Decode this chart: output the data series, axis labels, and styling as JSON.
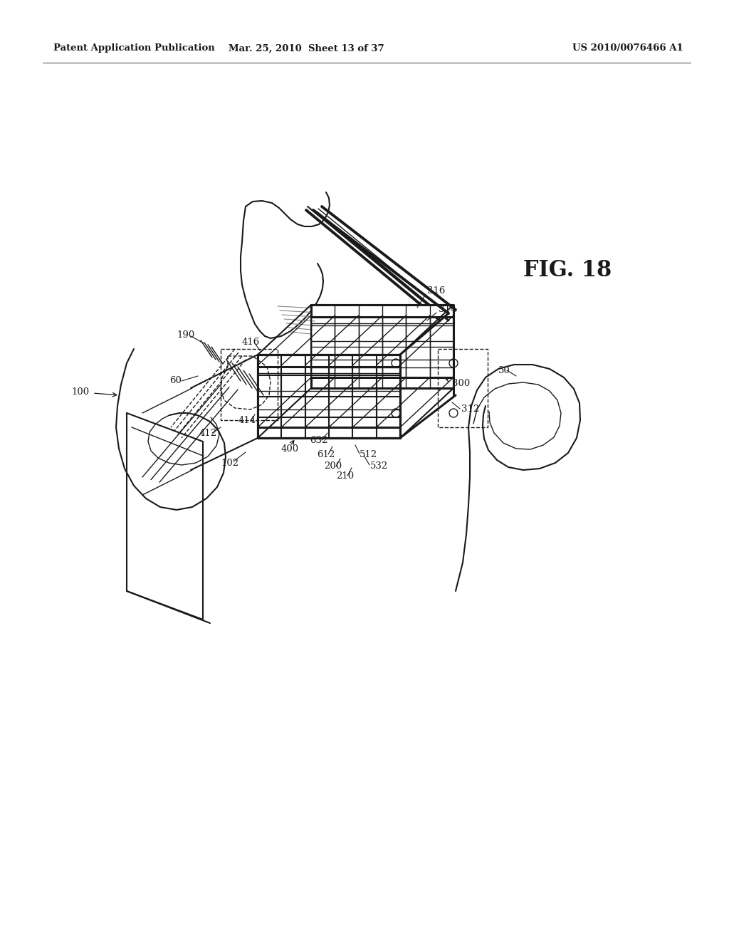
{
  "bg_color": "#ffffff",
  "line_color": "#1a1a1a",
  "header_left": "Patent Application Publication",
  "header_mid": "Mar. 25, 2010  Sheet 13 of 37",
  "header_right": "US 2010/0076466 A1",
  "fig_label": "FIG. 18",
  "figsize": [
    10.24,
    13.2
  ],
  "dpi": 100
}
